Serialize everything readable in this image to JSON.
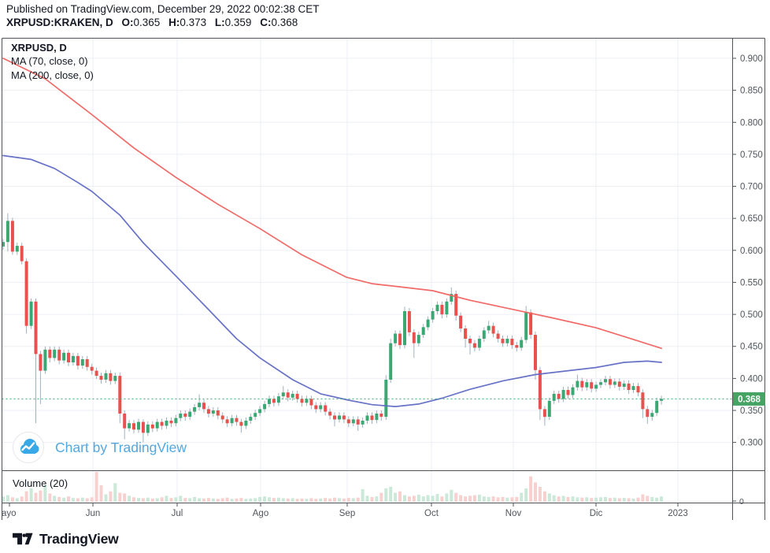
{
  "header": {
    "published_line": "Published on TradingView.com, December 29, 2022 00:02:38 CET",
    "symbol": "XRPUSD:KRAKEN, D",
    "ohlc": [
      {
        "label": "O:",
        "value": "0.365"
      },
      {
        "label": "H:",
        "value": "0.373"
      },
      {
        "label": "L:",
        "value": "0.359"
      },
      {
        "label": "C:",
        "value": "0.368"
      }
    ]
  },
  "legend": {
    "title": "XRPUSD, D",
    "ma1": "MA (70, close, 0)",
    "ma2": "MA (200, close, 0)"
  },
  "watermark": {
    "text": "Chart by TradingView"
  },
  "volume_pane": {
    "label": "Volume (20)",
    "zero": "0"
  },
  "footer": {
    "brand": "TradingView"
  },
  "axes": {
    "price_ticks": [
      "0.900",
      "0.850",
      "0.800",
      "0.750",
      "0.700",
      "0.650",
      "0.600",
      "0.550",
      "0.500",
      "0.450",
      "0.400",
      "0.350",
      "0.300"
    ],
    "time_ticks": [
      {
        "label": "ayo",
        "x": 2,
        "grid": false,
        "align": "start",
        "tick_x": 12
      },
      {
        "label": "Jun",
        "x": 118,
        "grid": true
      },
      {
        "label": "Jul",
        "x": 225,
        "grid": true
      },
      {
        "label": "Ago",
        "x": 331,
        "grid": true
      },
      {
        "label": "Sep",
        "x": 441,
        "grid": true
      },
      {
        "label": "Oct",
        "x": 548,
        "grid": true
      },
      {
        "label": "Nov",
        "x": 652,
        "grid": true
      },
      {
        "label": "Dic",
        "x": 757,
        "grid": true
      },
      {
        "label": "2023",
        "x": 861,
        "grid": true
      }
    ],
    "current_price": {
      "label": "0.368",
      "value": 0.368
    }
  },
  "colors": {
    "up": "#3ba874",
    "down": "#e8514d",
    "wick": "#9fb0bf",
    "vol_up": "#cbe8d8",
    "vol_down": "#f7d1d0",
    "ma70": "#f0625f",
    "ma200": "#5f6ac4",
    "grid": "#edeff4",
    "frame": "#50535a",
    "axis_text": "#50555c",
    "price_line": "#3fa874",
    "badge_bg": "#45a463",
    "badge_text": "#ffffff",
    "watermark_blue": "#38a9e6",
    "text_dark": "#131722"
  },
  "chart_data": {
    "type": "candlestick",
    "symbol": "XRPUSD:KRAKEN",
    "interval": "D",
    "title": "XRPUSD, D",
    "ylim": [
      0.256,
      0.932
    ],
    "grid": true,
    "last_candle_ohlc": {
      "o": 0.365,
      "h": 0.373,
      "l": 0.359,
      "c": 0.368
    },
    "volume_units": "relative 0-1",
    "candles": [
      [
        0.606,
        0.618,
        0.601,
        0.613,
        0.18
      ],
      [
        0.613,
        0.658,
        0.598,
        0.646,
        0.22
      ],
      [
        0.646,
        0.651,
        0.593,
        0.598,
        0.15
      ],
      [
        0.598,
        0.612,
        0.593,
        0.607,
        0.12
      ],
      [
        0.607,
        0.612,
        0.578,
        0.583,
        0.18
      ],
      [
        0.583,
        0.588,
        0.47,
        0.482,
        0.35
      ],
      [
        0.482,
        0.525,
        0.477,
        0.52,
        0.45
      ],
      [
        0.52,
        0.525,
        0.33,
        0.438,
        0.3
      ],
      [
        0.438,
        0.443,
        0.36,
        0.412,
        0.38
      ],
      [
        0.412,
        0.45,
        0.407,
        0.445,
        0.55
      ],
      [
        0.445,
        0.45,
        0.425,
        0.432,
        0.28
      ],
      [
        0.432,
        0.45,
        0.427,
        0.445,
        0.2
      ],
      [
        0.445,
        0.45,
        0.422,
        0.428,
        0.16
      ],
      [
        0.428,
        0.445,
        0.423,
        0.44,
        0.14
      ],
      [
        0.44,
        0.445,
        0.419,
        0.425,
        0.18
      ],
      [
        0.425,
        0.44,
        0.42,
        0.435,
        0.13
      ],
      [
        0.435,
        0.44,
        0.414,
        0.42,
        0.12
      ],
      [
        0.42,
        0.435,
        0.415,
        0.43,
        0.14
      ],
      [
        0.43,
        0.435,
        0.412,
        0.418,
        0.12
      ],
      [
        0.418,
        0.423,
        0.406,
        0.412,
        0.15
      ],
      [
        0.412,
        0.417,
        0.399,
        0.404,
        1.0
      ],
      [
        0.404,
        0.409,
        0.392,
        0.398,
        0.55
      ],
      [
        0.398,
        0.413,
        0.393,
        0.408,
        0.25
      ],
      [
        0.408,
        0.413,
        0.39,
        0.396,
        0.35
      ],
      [
        0.396,
        0.409,
        0.391,
        0.404,
        0.62
      ],
      [
        0.404,
        0.409,
        0.33,
        0.345,
        0.3
      ],
      [
        0.345,
        0.35,
        0.305,
        0.322,
        0.28
      ],
      [
        0.322,
        0.335,
        0.317,
        0.33,
        0.2
      ],
      [
        0.33,
        0.335,
        0.314,
        0.32,
        0.15
      ],
      [
        0.32,
        0.337,
        0.315,
        0.332,
        0.13
      ],
      [
        0.332,
        0.336,
        0.3,
        0.315,
        0.12
      ],
      [
        0.315,
        0.333,
        0.31,
        0.328,
        0.14
      ],
      [
        0.328,
        0.333,
        0.316,
        0.322,
        0.11
      ],
      [
        0.322,
        0.337,
        0.317,
        0.332,
        0.12
      ],
      [
        0.332,
        0.337,
        0.32,
        0.326,
        0.15
      ],
      [
        0.326,
        0.339,
        0.321,
        0.334,
        0.2
      ],
      [
        0.334,
        0.339,
        0.324,
        0.33,
        0.13
      ],
      [
        0.33,
        0.343,
        0.325,
        0.338,
        0.15
      ],
      [
        0.338,
        0.35,
        0.333,
        0.345,
        0.2
      ],
      [
        0.345,
        0.35,
        0.334,
        0.34,
        0.13
      ],
      [
        0.34,
        0.353,
        0.335,
        0.348,
        0.12
      ],
      [
        0.348,
        0.36,
        0.343,
        0.355,
        0.16
      ],
      [
        0.355,
        0.375,
        0.35,
        0.362,
        0.12
      ],
      [
        0.362,
        0.367,
        0.346,
        0.352,
        0.11
      ],
      [
        0.352,
        0.357,
        0.339,
        0.345,
        0.13
      ],
      [
        0.345,
        0.355,
        0.34,
        0.35,
        0.11
      ],
      [
        0.35,
        0.355,
        0.336,
        0.342,
        0.1
      ],
      [
        0.342,
        0.347,
        0.33,
        0.336,
        0.12
      ],
      [
        0.336,
        0.341,
        0.324,
        0.33,
        0.14
      ],
      [
        0.33,
        0.343,
        0.325,
        0.338,
        0.1
      ],
      [
        0.338,
        0.343,
        0.326,
        0.332,
        0.11
      ],
      [
        0.332,
        0.337,
        0.315,
        0.326,
        0.13
      ],
      [
        0.326,
        0.339,
        0.321,
        0.334,
        0.1
      ],
      [
        0.334,
        0.345,
        0.329,
        0.34,
        0.11
      ],
      [
        0.34,
        0.351,
        0.335,
        0.346,
        0.12
      ],
      [
        0.346,
        0.357,
        0.341,
        0.352,
        0.16
      ],
      [
        0.352,
        0.365,
        0.347,
        0.36,
        0.18
      ],
      [
        0.36,
        0.373,
        0.355,
        0.368,
        0.15
      ],
      [
        0.368,
        0.373,
        0.356,
        0.362,
        0.13
      ],
      [
        0.362,
        0.377,
        0.357,
        0.372,
        0.14
      ],
      [
        0.372,
        0.388,
        0.367,
        0.378,
        0.12
      ],
      [
        0.378,
        0.383,
        0.364,
        0.37,
        0.11
      ],
      [
        0.37,
        0.381,
        0.365,
        0.376,
        0.12
      ],
      [
        0.376,
        0.381,
        0.362,
        0.368,
        0.1
      ],
      [
        0.368,
        0.373,
        0.356,
        0.362,
        0.11
      ],
      [
        0.362,
        0.373,
        0.357,
        0.368,
        0.1
      ],
      [
        0.368,
        0.373,
        0.352,
        0.358,
        0.12
      ],
      [
        0.358,
        0.363,
        0.346,
        0.352,
        0.1
      ],
      [
        0.352,
        0.363,
        0.347,
        0.358,
        0.11
      ],
      [
        0.358,
        0.363,
        0.342,
        0.348,
        0.13
      ],
      [
        0.348,
        0.353,
        0.336,
        0.342,
        0.11
      ],
      [
        0.342,
        0.347,
        0.325,
        0.336,
        0.14
      ],
      [
        0.336,
        0.347,
        0.331,
        0.342,
        0.12
      ],
      [
        0.342,
        0.347,
        0.33,
        0.336,
        0.11
      ],
      [
        0.336,
        0.341,
        0.324,
        0.33,
        0.13
      ],
      [
        0.33,
        0.341,
        0.325,
        0.336,
        0.12
      ],
      [
        0.336,
        0.341,
        0.318,
        0.328,
        0.14
      ],
      [
        0.328,
        0.339,
        0.323,
        0.334,
        0.42
      ],
      [
        0.334,
        0.347,
        0.329,
        0.342,
        0.2
      ],
      [
        0.342,
        0.347,
        0.329,
        0.335,
        0.16
      ],
      [
        0.335,
        0.35,
        0.33,
        0.345,
        0.18
      ],
      [
        0.345,
        0.35,
        0.334,
        0.34,
        0.3
      ],
      [
        0.34,
        0.405,
        0.335,
        0.398,
        0.45
      ],
      [
        0.398,
        0.462,
        0.393,
        0.455,
        0.5
      ],
      [
        0.455,
        0.475,
        0.45,
        0.47,
        0.3
      ],
      [
        0.47,
        0.475,
        0.446,
        0.452,
        0.35
      ],
      [
        0.452,
        0.512,
        0.447,
        0.505,
        0.22
      ],
      [
        0.505,
        0.51,
        0.466,
        0.472,
        0.18
      ],
      [
        0.472,
        0.477,
        0.432,
        0.455,
        0.2
      ],
      [
        0.455,
        0.473,
        0.45,
        0.468,
        0.24
      ],
      [
        0.468,
        0.485,
        0.463,
        0.48,
        0.18
      ],
      [
        0.48,
        0.497,
        0.475,
        0.492,
        0.22
      ],
      [
        0.492,
        0.51,
        0.487,
        0.505,
        0.2
      ],
      [
        0.505,
        0.52,
        0.5,
        0.515,
        0.26
      ],
      [
        0.515,
        0.52,
        0.494,
        0.5,
        0.18
      ],
      [
        0.5,
        0.525,
        0.495,
        0.52,
        0.28
      ],
      [
        0.52,
        0.542,
        0.515,
        0.532,
        0.4
      ],
      [
        0.532,
        0.537,
        0.49,
        0.498,
        0.3
      ],
      [
        0.498,
        0.503,
        0.472,
        0.478,
        0.22
      ],
      [
        0.478,
        0.483,
        0.448,
        0.462,
        0.18
      ],
      [
        0.462,
        0.467,
        0.437,
        0.455,
        0.2
      ],
      [
        0.455,
        0.46,
        0.442,
        0.448,
        0.22
      ],
      [
        0.448,
        0.467,
        0.443,
        0.462,
        0.24
      ],
      [
        0.462,
        0.48,
        0.457,
        0.475,
        0.18
      ],
      [
        0.475,
        0.49,
        0.47,
        0.482,
        0.16
      ],
      [
        0.482,
        0.487,
        0.464,
        0.47,
        0.18
      ],
      [
        0.47,
        0.475,
        0.456,
        0.462,
        0.15
      ],
      [
        0.462,
        0.467,
        0.449,
        0.455,
        0.16
      ],
      [
        0.455,
        0.467,
        0.45,
        0.462,
        0.14
      ],
      [
        0.462,
        0.467,
        0.446,
        0.452,
        0.15
      ],
      [
        0.452,
        0.457,
        0.442,
        0.448,
        0.16
      ],
      [
        0.448,
        0.465,
        0.443,
        0.46,
        0.3
      ],
      [
        0.46,
        0.513,
        0.455,
        0.503,
        0.45
      ],
      [
        0.503,
        0.508,
        0.462,
        0.468,
        0.85
      ],
      [
        0.468,
        0.473,
        0.398,
        0.413,
        0.65
      ],
      [
        0.413,
        0.418,
        0.335,
        0.352,
        0.5
      ],
      [
        0.352,
        0.357,
        0.326,
        0.34,
        0.35
      ],
      [
        0.34,
        0.37,
        0.335,
        0.365,
        0.28
      ],
      [
        0.365,
        0.381,
        0.36,
        0.376,
        0.22
      ],
      [
        0.376,
        0.381,
        0.362,
        0.368,
        0.18
      ],
      [
        0.368,
        0.387,
        0.363,
        0.382,
        0.2
      ],
      [
        0.382,
        0.387,
        0.368,
        0.374,
        0.16
      ],
      [
        0.374,
        0.391,
        0.369,
        0.386,
        0.18
      ],
      [
        0.386,
        0.406,
        0.381,
        0.396,
        0.15
      ],
      [
        0.396,
        0.401,
        0.38,
        0.386,
        0.14
      ],
      [
        0.386,
        0.399,
        0.381,
        0.394,
        0.15
      ],
      [
        0.394,
        0.399,
        0.378,
        0.384,
        0.13
      ],
      [
        0.384,
        0.395,
        0.379,
        0.39,
        0.14
      ],
      [
        0.39,
        0.399,
        0.385,
        0.394,
        0.15
      ],
      [
        0.394,
        0.404,
        0.389,
        0.399,
        0.16
      ],
      [
        0.399,
        0.404,
        0.384,
        0.39,
        0.13
      ],
      [
        0.39,
        0.4,
        0.385,
        0.395,
        0.14
      ],
      [
        0.395,
        0.4,
        0.381,
        0.387,
        0.12
      ],
      [
        0.387,
        0.397,
        0.382,
        0.392,
        0.13
      ],
      [
        0.392,
        0.397,
        0.376,
        0.382,
        0.12
      ],
      [
        0.382,
        0.393,
        0.377,
        0.388,
        0.11
      ],
      [
        0.388,
        0.393,
        0.372,
        0.378,
        0.14
      ],
      [
        0.378,
        0.383,
        0.338,
        0.352,
        0.25
      ],
      [
        0.352,
        0.357,
        0.329,
        0.34,
        0.2
      ],
      [
        0.34,
        0.351,
        0.334,
        0.346,
        0.16
      ],
      [
        0.346,
        0.37,
        0.341,
        0.365,
        0.14
      ],
      [
        0.365,
        0.373,
        0.359,
        0.368,
        0.18
      ]
    ],
    "ma_series": [
      {
        "name": "MA (70, close, 0)",
        "color_key": "ma70",
        "points": [
          [
            0,
            0.9
          ],
          [
            9,
            0.868
          ],
          [
            19,
            0.812
          ],
          [
            28,
            0.76
          ],
          [
            37,
            0.714
          ],
          [
            46,
            0.672
          ],
          [
            55,
            0.634
          ],
          [
            64,
            0.593
          ],
          [
            73.5,
            0.558
          ],
          [
            79,
            0.548
          ],
          [
            85,
            0.543
          ],
          [
            92,
            0.537
          ],
          [
            100,
            0.522
          ],
          [
            109,
            0.508
          ],
          [
            118,
            0.494
          ],
          [
            127,
            0.479
          ],
          [
            134,
            0.463
          ],
          [
            141,
            0.447
          ]
        ]
      },
      {
        "name": "MA (200, close, 0)",
        "color_key": "ma200",
        "points": [
          [
            0,
            0.748
          ],
          [
            6,
            0.742
          ],
          [
            11,
            0.728
          ],
          [
            16,
            0.706
          ],
          [
            19,
            0.692
          ],
          [
            25,
            0.655
          ],
          [
            30,
            0.612
          ],
          [
            37,
            0.56
          ],
          [
            43,
            0.515
          ],
          [
            50,
            0.462
          ],
          [
            55,
            0.432
          ],
          [
            62,
            0.398
          ],
          [
            68,
            0.376
          ],
          [
            74,
            0.366
          ],
          [
            79,
            0.359
          ],
          [
            84,
            0.356
          ],
          [
            89,
            0.36
          ],
          [
            94,
            0.369
          ],
          [
            100,
            0.383
          ],
          [
            107,
            0.396
          ],
          [
            114,
            0.406
          ],
          [
            121,
            0.412
          ],
          [
            127,
            0.417
          ],
          [
            133,
            0.425
          ],
          [
            138,
            0.427
          ],
          [
            141,
            0.425
          ]
        ]
      }
    ]
  }
}
